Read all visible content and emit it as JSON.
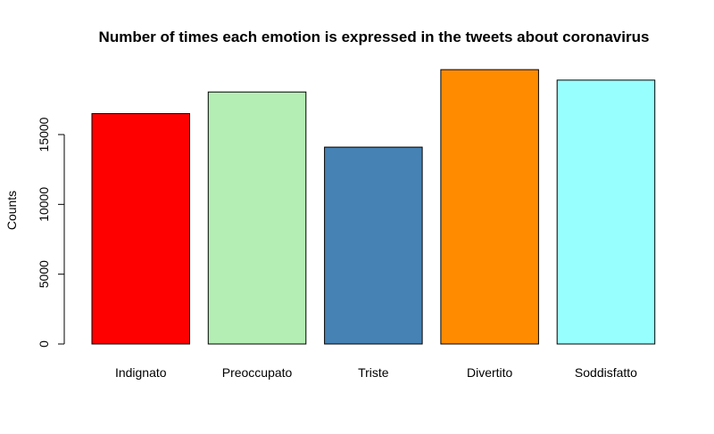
{
  "chart_data": {
    "type": "bar",
    "title": "Number of times each emotion is expressed in the tweets about coronavirus",
    "xlabel": "",
    "ylabel": "Counts",
    "categories": [
      "Indignato",
      "Preoccupato",
      "Triste",
      "Divertito",
      "Soddisfatto"
    ],
    "values": [
      16500,
      18050,
      14100,
      19650,
      18900
    ],
    "colors": [
      "#FF0000",
      "#B4EEB4",
      "#4682B4",
      "#FF8C00",
      "#98FFFF"
    ],
    "yticks": [
      0,
      5000,
      10000,
      15000
    ],
    "ylim": [
      0,
      20000
    ],
    "grid": false,
    "legend": "none"
  }
}
